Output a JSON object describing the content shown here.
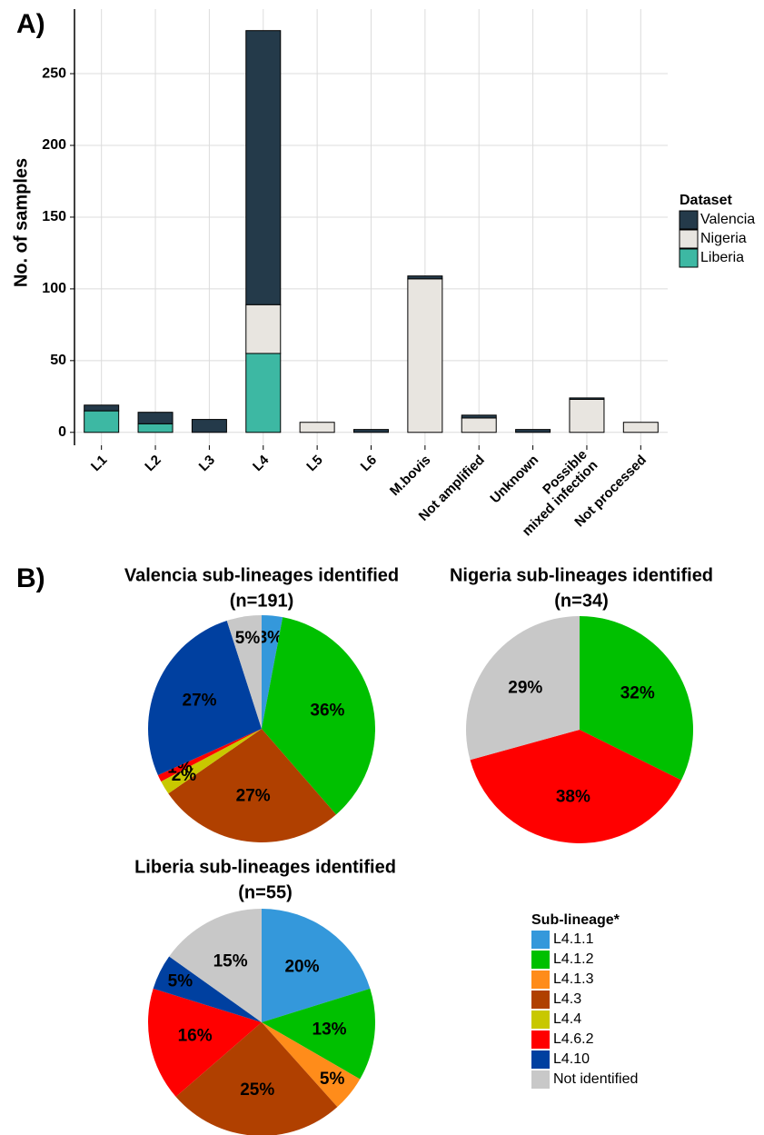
{
  "panel_labels": [
    "A)",
    "B)"
  ],
  "chart_data": [
    {
      "type": "bar",
      "stacked": true,
      "ylabel": "No. of samples",
      "categories": [
        "L1",
        "L2",
        "L3",
        "L4",
        "L5",
        "L6",
        "M.bovis",
        "Not amplified",
        "Unknown",
        "Possible\nmixed infection",
        "Not processed"
      ],
      "series": [
        {
          "name": "Valencia",
          "color": "#243a4a",
          "values": [
            4,
            8,
            9,
            191,
            0,
            2,
            2,
            2,
            2,
            1,
            0
          ]
        },
        {
          "name": "Nigeria",
          "color": "#e8e5e0",
          "values": [
            0,
            0,
            0,
            34,
            7,
            0,
            107,
            10,
            0,
            23,
            7
          ]
        },
        {
          "name": "Liberia",
          "color": "#3db8a3",
          "values": [
            15,
            6,
            0,
            55,
            0,
            0,
            0,
            0,
            0,
            0,
            0
          ]
        }
      ],
      "legend_title": "Dataset",
      "ylim": [
        -9,
        295
      ],
      "yticks": [
        0,
        50,
        100,
        150,
        200,
        250
      ],
      "grid": true
    },
    {
      "type": "pie",
      "title": "Valencia sub-lineages identified",
      "subtitle": "(n=191)",
      "categories": [
        "L4.1.1",
        "L4.1.2",
        "L4.3",
        "L4.4",
        "L4.6.2",
        "L4.10",
        "Not identified"
      ],
      "values": [
        3,
        36,
        27,
        2,
        1,
        27,
        5
      ],
      "value_labels": [
        "3%",
        "36%",
        "27%",
        "2%",
        "1%",
        "27%",
        "5%"
      ]
    },
    {
      "type": "pie",
      "title": "Nigeria sub-lineages identified",
      "subtitle": "(n=34)",
      "categories": [
        "L4.1.2",
        "L4.6.2",
        "Not identified"
      ],
      "values": [
        32,
        38,
        29
      ],
      "value_labels": [
        "32%",
        "38%",
        "29%"
      ]
    },
    {
      "type": "pie",
      "title": "Liberia sub-lineages identified",
      "subtitle": "(n=55)",
      "categories": [
        "L4.1.1",
        "L4.1.2",
        "L4.1.3",
        "L4.3",
        "L4.6.2",
        "L4.10",
        "Not identified"
      ],
      "values": [
        20,
        13,
        5,
        25,
        16,
        5,
        15
      ],
      "value_labels": [
        "20%",
        "13%",
        "5%",
        "25%",
        "16%",
        "5%",
        "15%"
      ]
    }
  ],
  "legend": {
    "title": "Sub-lineage*",
    "categories": [
      "L4.1.1",
      "L4.1.2",
      "L4.1.3",
      "L4.3",
      "L4.4",
      "L4.6.2",
      "L4.10",
      "Not identified"
    ],
    "colors": [
      "#3498db",
      "#00c000",
      "#ff8c1a",
      "#b04000",
      "#c8c800",
      "#ff0000",
      "#0040a0",
      "#c8c8c8"
    ]
  }
}
